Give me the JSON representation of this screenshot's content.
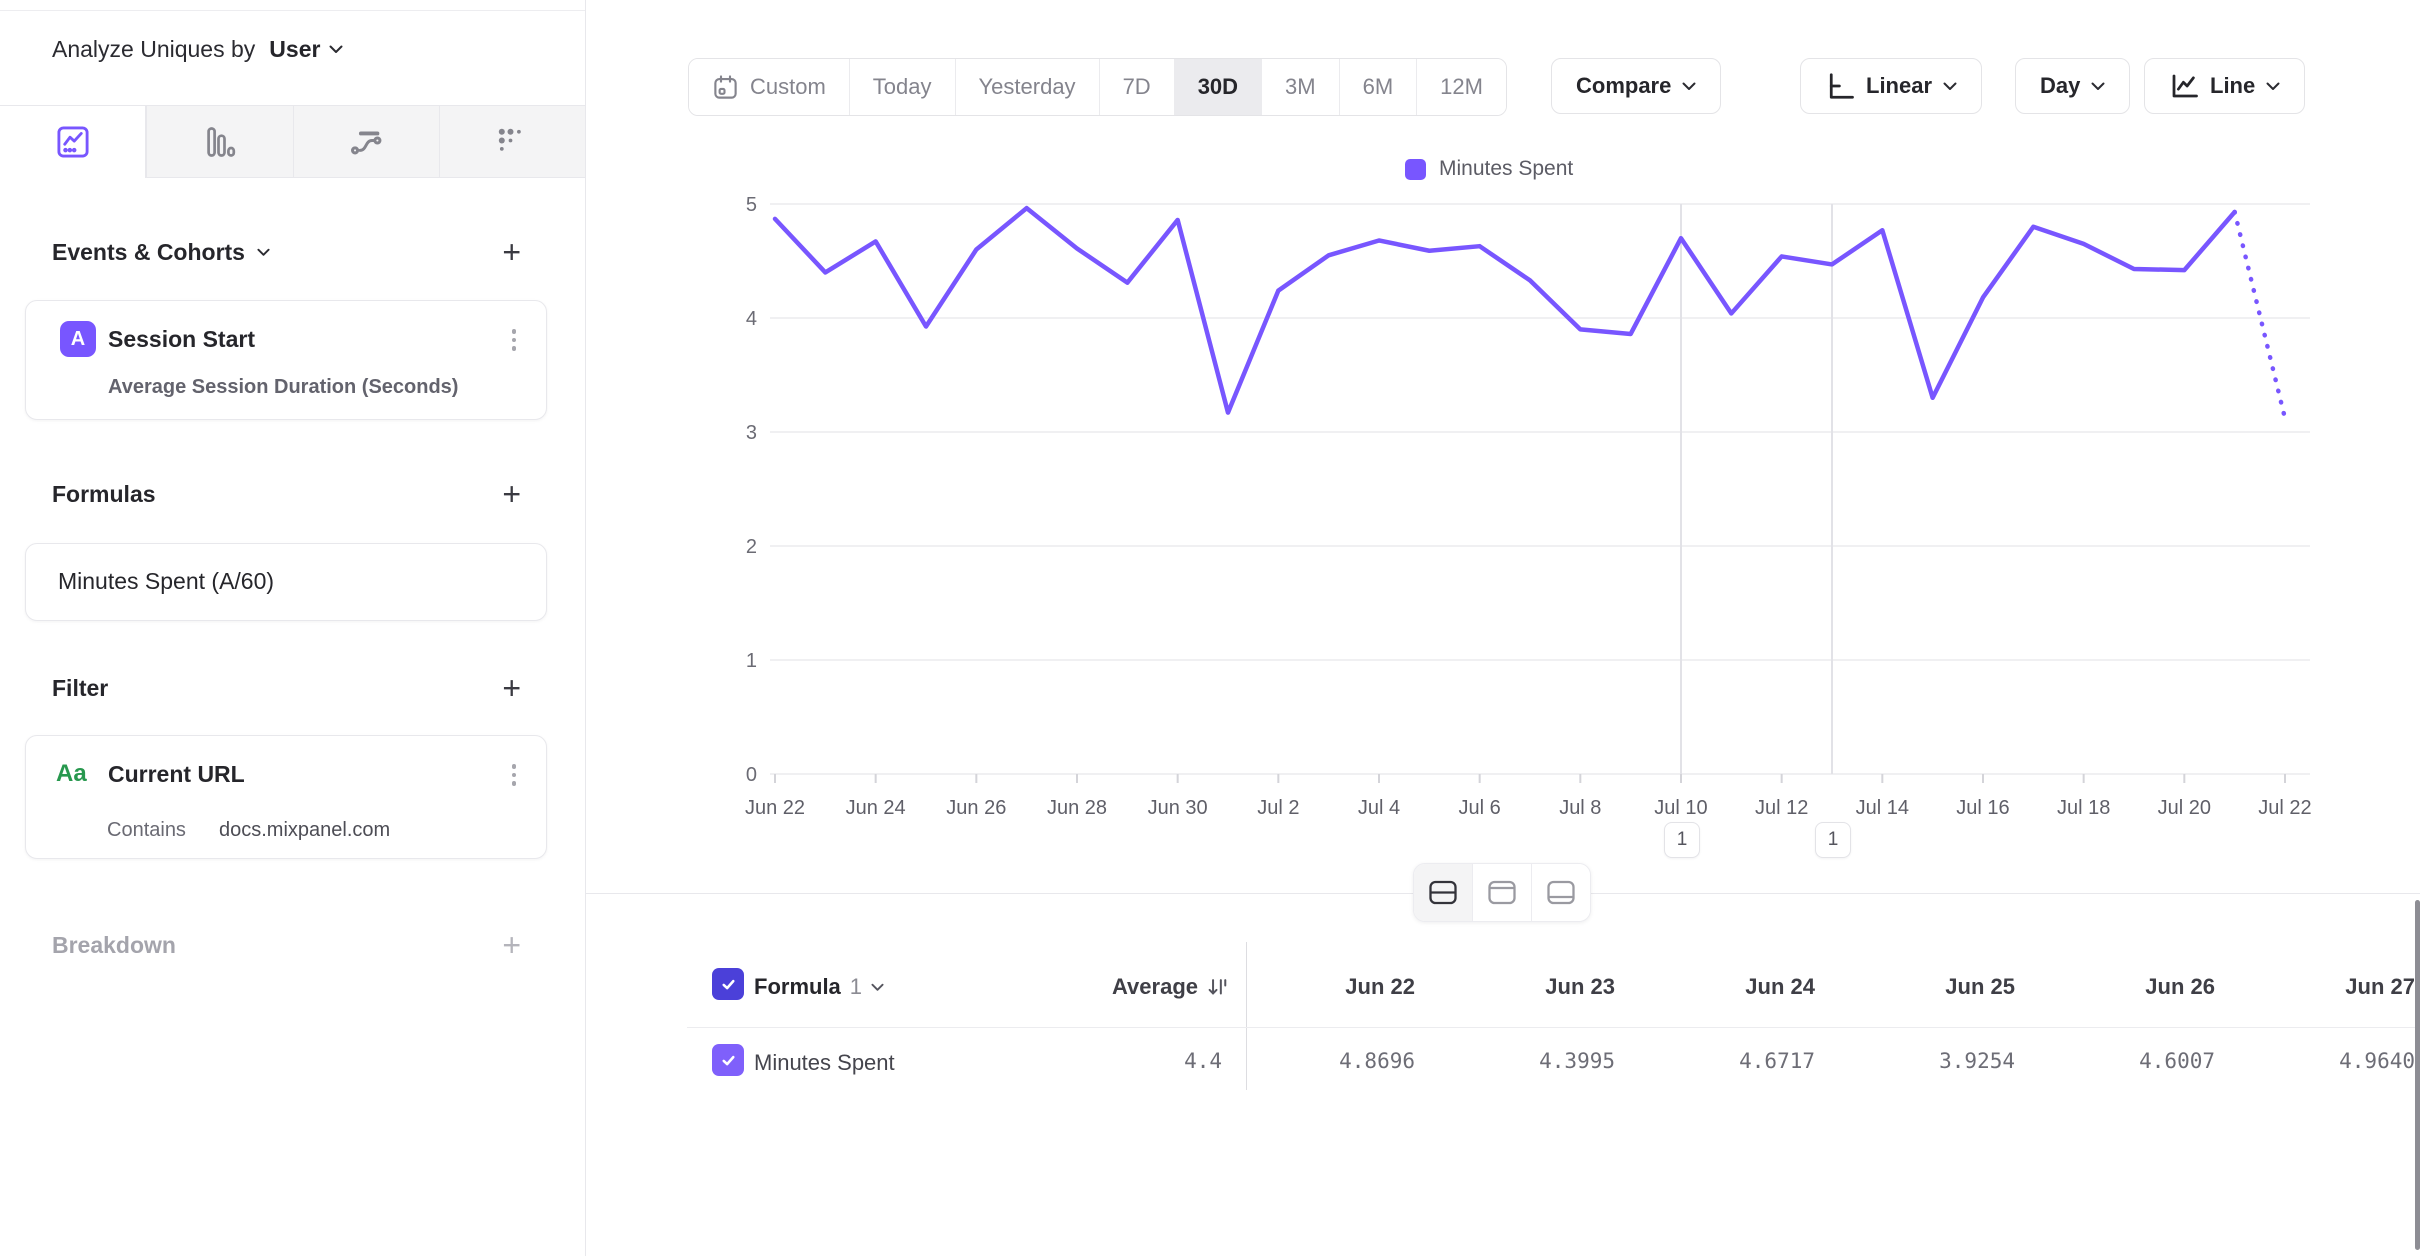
{
  "sidebar": {
    "analyze_label": "Analyze Uniques by",
    "analyze_value": "User",
    "events_section": {
      "title": "Events & Cohorts",
      "add": "+"
    },
    "event_card": {
      "badge": "A",
      "title": "Session Start",
      "subtitle": "Average Session Duration (Seconds)"
    },
    "formulas_section": {
      "title": "Formulas",
      "add": "+"
    },
    "formula_card": {
      "title": "Minutes Spent (A/60)"
    },
    "filter_section": {
      "title": "Filter",
      "add": "+"
    },
    "filter_card": {
      "badge": "Aa",
      "title": "Current URL",
      "operator": "Contains",
      "value": "docs.mixpanel.com"
    },
    "breakdown_section": {
      "title": "Breakdown",
      "add": "+"
    }
  },
  "toolbar": {
    "date_ranges": [
      "Custom",
      "Today",
      "Yesterday",
      "7D",
      "30D",
      "3M",
      "6M",
      "12M"
    ],
    "active_range": "30D",
    "compare_label": "Compare",
    "scale_label": "Linear",
    "granularity_label": "Day",
    "chart_type_label": "Line"
  },
  "chart_data": {
    "type": "line",
    "legend": [
      {
        "name": "Minutes Spent",
        "color": "#7856ff"
      }
    ],
    "x": [
      "Jun 22",
      "Jun 23",
      "Jun 24",
      "Jun 25",
      "Jun 26",
      "Jun 27",
      "Jun 28",
      "Jun 29",
      "Jun 30",
      "Jul 1",
      "Jul 2",
      "Jul 3",
      "Jul 4",
      "Jul 5",
      "Jul 6",
      "Jul 7",
      "Jul 8",
      "Jul 9",
      "Jul 10",
      "Jul 11",
      "Jul 12",
      "Jul 13",
      "Jul 14",
      "Jul 15",
      "Jul 16",
      "Jul 17",
      "Jul 18",
      "Jul 19",
      "Jul 20",
      "Jul 21",
      "Jul 22"
    ],
    "x_axis_tick_labels": [
      "Jun 22",
      "Jun 24",
      "Jun 26",
      "Jun 28",
      "Jun 30",
      "Jul 2",
      "Jul 4",
      "Jul 6",
      "Jul 8",
      "Jul 10",
      "Jul 12",
      "Jul 14",
      "Jul 16",
      "Jul 18",
      "Jul 20",
      "Jul 22"
    ],
    "series": [
      {
        "name": "Minutes Spent",
        "color": "#7856ff",
        "values": [
          4.8696,
          4.3995,
          4.6717,
          3.9254,
          4.6007,
          4.964,
          4.61,
          4.31,
          4.86,
          3.17,
          4.24,
          4.55,
          4.68,
          4.59,
          4.63,
          4.33,
          3.9,
          3.86,
          4.7,
          4.04,
          4.54,
          4.47,
          4.77,
          3.3,
          4.18,
          4.8,
          4.65,
          4.43,
          4.42,
          4.93,
          3.12
        ],
        "incomplete_tail_points": 1
      }
    ],
    "ylim": [
      0,
      5
    ],
    "y_ticks": [
      0,
      1,
      2,
      3,
      4,
      5
    ],
    "grid": "horizontal",
    "legend_position": "top-center",
    "annotations": [
      {
        "x_label": "Jul 10",
        "x_index": 18,
        "count": "1"
      },
      {
        "x_label": "Jul 13",
        "x_index": 21,
        "count": "1"
      }
    ]
  },
  "table": {
    "formula_label": "Formula",
    "formula_index": "1",
    "average_label": "Average",
    "columns": [
      "Jun 22",
      "Jun 23",
      "Jun 24",
      "Jun 25",
      "Jun 26",
      "Jun 27"
    ],
    "rows": [
      {
        "label": "Minutes Spent",
        "average": "4.4",
        "values": [
          "4.8696",
          "4.3995",
          "4.6717",
          "3.9254",
          "4.6007",
          "4.9640"
        ]
      }
    ]
  }
}
